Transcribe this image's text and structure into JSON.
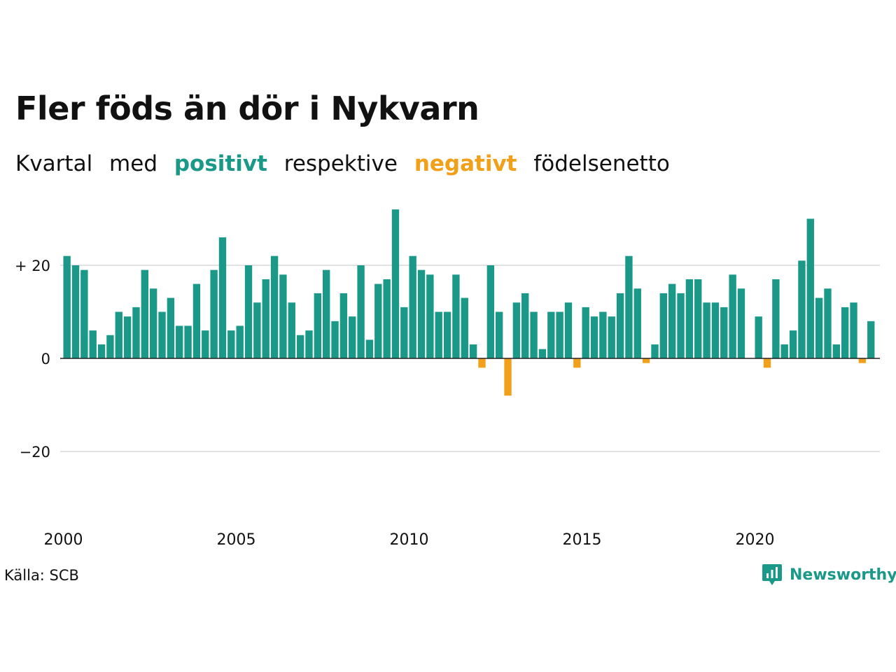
{
  "title": "Fler föds än dör i Nykvarn",
  "subtitle": {
    "w1": "Kvartal",
    "w2": "med",
    "positive_word": "positivt",
    "w3": "respektive",
    "negative_word": "negativt",
    "w4": "födelsenetto"
  },
  "colors": {
    "positive": "#1a9988",
    "negative": "#f2a01a",
    "grid": "#e2e2e2",
    "axis": "#222222"
  },
  "source": "Källa: SCB",
  "brand": {
    "name": "Newsworthy",
    "icon": "bar-chart-speech-bubble-icon"
  },
  "chart_data": {
    "type": "bar",
    "title": "Fler föds än dör i Nykvarn",
    "xlabel": "",
    "ylabel": "",
    "x_start": "2000 Q1",
    "x_end": "2023 Q2",
    "period": "quarter",
    "ylim": [
      -35,
      35
    ],
    "y_ticks": [
      {
        "value": 20,
        "label": "+ 20"
      },
      {
        "value": 0,
        "label": "0"
      },
      {
        "value": -20,
        "label": "−20"
      }
    ],
    "x_ticks": [
      {
        "year": 2000,
        "label": "2000"
      },
      {
        "year": 2005,
        "label": "2005"
      },
      {
        "year": 2010,
        "label": "2010"
      },
      {
        "year": 2015,
        "label": "2015"
      },
      {
        "year": 2020,
        "label": "2020"
      }
    ],
    "grid": "horizontal",
    "categories": [
      "2000 Q1",
      "2000 Q2",
      "2000 Q3",
      "2000 Q4",
      "2001 Q1",
      "2001 Q2",
      "2001 Q3",
      "2001 Q4",
      "2002 Q1",
      "2002 Q2",
      "2002 Q3",
      "2002 Q4",
      "2003 Q1",
      "2003 Q2",
      "2003 Q3",
      "2003 Q4",
      "2004 Q1",
      "2004 Q2",
      "2004 Q3",
      "2004 Q4",
      "2005 Q1",
      "2005 Q2",
      "2005 Q3",
      "2005 Q4",
      "2006 Q1",
      "2006 Q2",
      "2006 Q3",
      "2006 Q4",
      "2007 Q1",
      "2007 Q2",
      "2007 Q3",
      "2007 Q4",
      "2008 Q1",
      "2008 Q2",
      "2008 Q3",
      "2008 Q4",
      "2009 Q1",
      "2009 Q2",
      "2009 Q3",
      "2009 Q4",
      "2010 Q1",
      "2010 Q2",
      "2010 Q3",
      "2010 Q4",
      "2011 Q1",
      "2011 Q2",
      "2011 Q3",
      "2011 Q4",
      "2012 Q1",
      "2012 Q2",
      "2012 Q3",
      "2012 Q4",
      "2013 Q1",
      "2013 Q2",
      "2013 Q3",
      "2013 Q4",
      "2014 Q1",
      "2014 Q2",
      "2014 Q3",
      "2014 Q4",
      "2015 Q1",
      "2015 Q2",
      "2015 Q3",
      "2015 Q4",
      "2016 Q1",
      "2016 Q2",
      "2016 Q3",
      "2016 Q4",
      "2017 Q1",
      "2017 Q2",
      "2017 Q3",
      "2017 Q4",
      "2018 Q1",
      "2018 Q2",
      "2018 Q3",
      "2018 Q4",
      "2019 Q1",
      "2019 Q2",
      "2019 Q3",
      "2019 Q4",
      "2020 Q1",
      "2020 Q2",
      "2020 Q3",
      "2020 Q4",
      "2021 Q1",
      "2021 Q2",
      "2021 Q3",
      "2021 Q4",
      "2022 Q1",
      "2022 Q2",
      "2022 Q3",
      "2022 Q4",
      "2023 Q1",
      "2023 Q2"
    ],
    "values": [
      22,
      20,
      19,
      6,
      3,
      5,
      10,
      9,
      11,
      19,
      15,
      10,
      13,
      7,
      7,
      16,
      6,
      19,
      26,
      6,
      7,
      20,
      12,
      17,
      22,
      18,
      12,
      5,
      6,
      14,
      19,
      8,
      14,
      9,
      20,
      4,
      16,
      17,
      32,
      11,
      22,
      19,
      18,
      10,
      10,
      18,
      13,
      3,
      -2,
      20,
      10,
      -8,
      12,
      14,
      10,
      2,
      10,
      10,
      12,
      -2,
      11,
      9,
      10,
      9,
      14,
      22,
      15,
      -1,
      3,
      14,
      16,
      14,
      17,
      17,
      12,
      12,
      11,
      18,
      15,
      0,
      9,
      -2,
      17,
      3,
      6,
      21,
      30,
      13,
      15,
      3,
      11,
      12,
      -1,
      8
    ]
  }
}
